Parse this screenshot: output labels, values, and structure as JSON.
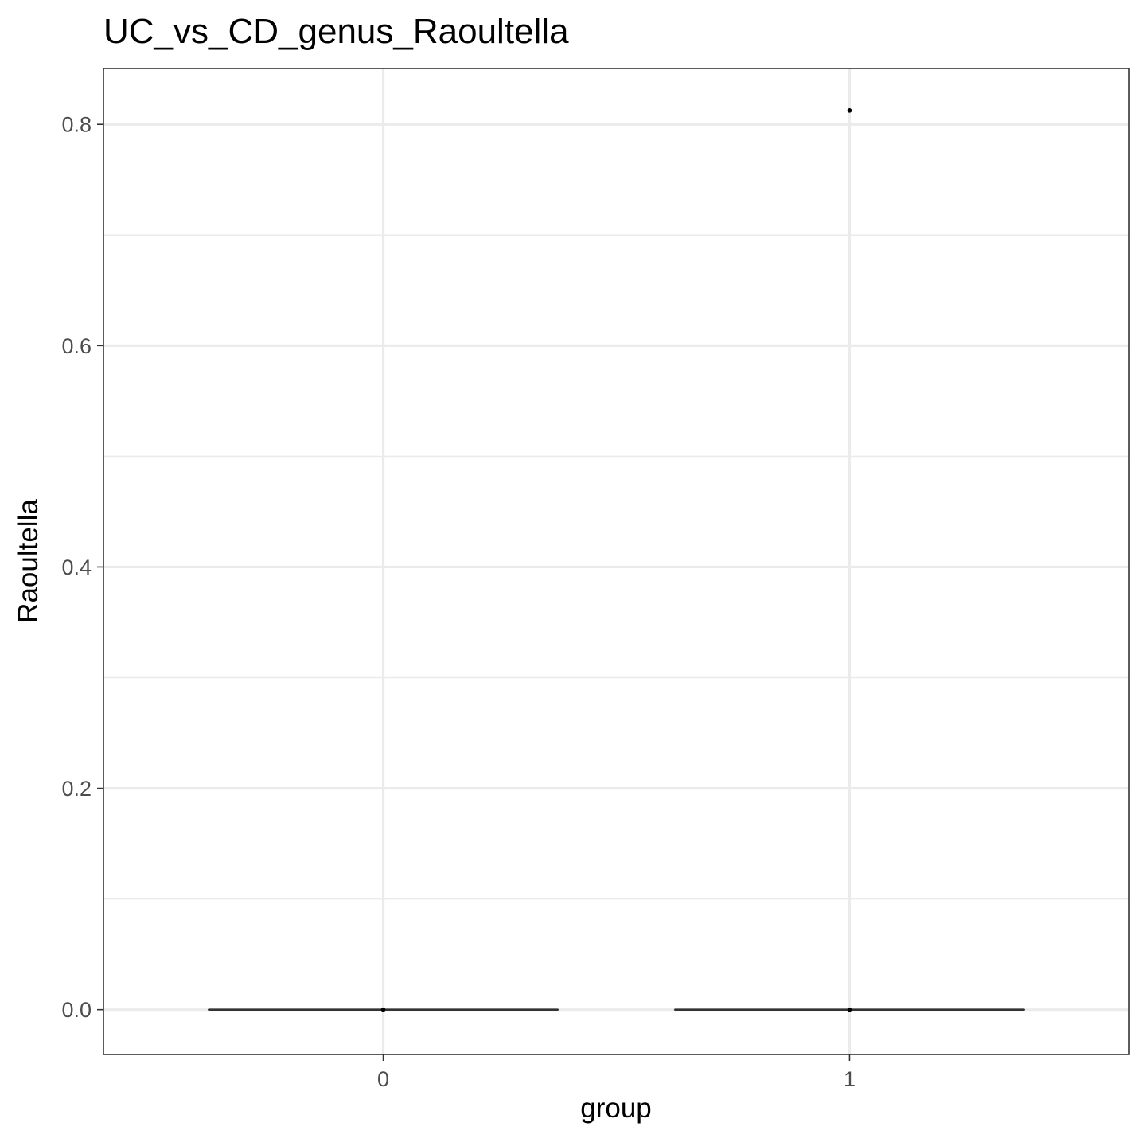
{
  "chart_data": {
    "type": "box",
    "title": "UC_vs_CD_genus_Raoultella",
    "xlabel": "group",
    "ylabel": "Raoultella",
    "categories": [
      "0",
      "1"
    ],
    "ylim": [
      -0.0405,
      0.8505
    ],
    "yticks": [
      0.0,
      0.2,
      0.4,
      0.6,
      0.8
    ],
    "ytick_labels": [
      "0.0",
      "0.2",
      "0.4",
      "0.6",
      "0.8"
    ],
    "grid": true,
    "boxes": [
      {
        "category": "0",
        "min": 0.0,
        "q1": 0.0,
        "median": 0.0,
        "q3": 0.0,
        "max": 0.0,
        "outliers": [
          0.0
        ]
      },
      {
        "category": "1",
        "min": 0.0,
        "q1": 0.0,
        "median": 0.0,
        "q3": 0.0,
        "max": 0.0,
        "outliers": [
          0.0,
          0.8125
        ]
      }
    ],
    "colors": {
      "grid": "#ebebeb",
      "box": "#333333",
      "panel_border": "#333333",
      "point": "#000000"
    }
  }
}
